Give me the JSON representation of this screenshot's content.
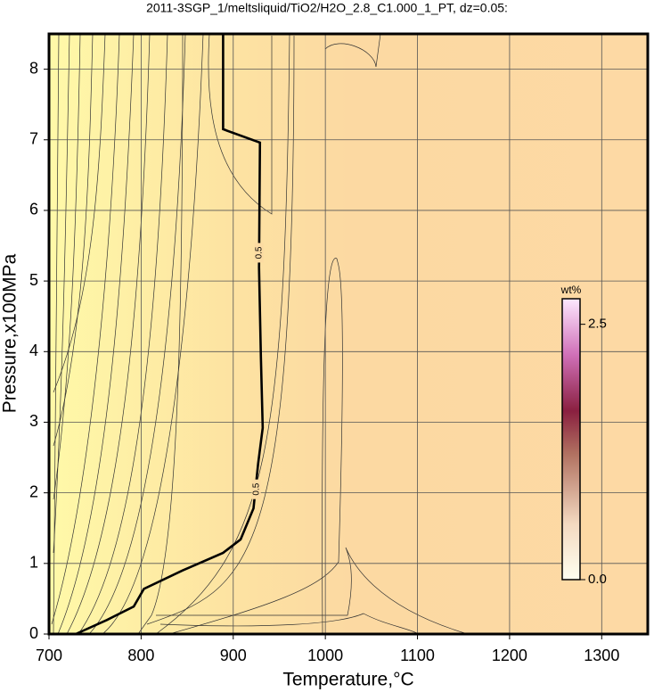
{
  "chart_data": {
    "type": "contour",
    "title": "2011-3SGP_1/meltsliquid/TiO2/H2O_2.8_C1.000_1_PT, dz=0.05:",
    "x_label": "Temperature,°C",
    "y_label": "Pressure,x100MPa",
    "xlim": [
      700,
      1350
    ],
    "ylim": [
      0,
      8.5
    ],
    "xticks": [
      700,
      800,
      900,
      1000,
      1100,
      1200,
      1300
    ],
    "yticks": [
      0,
      1,
      2,
      3,
      4,
      5,
      6,
      7,
      8
    ],
    "grid": true,
    "contour": {
      "label": "0.5",
      "x": [
        729,
        763,
        792,
        803,
        845,
        889,
        908,
        922,
        927,
        932,
        930,
        928,
        929,
        889,
        889
      ],
      "y": [
        0,
        0.2,
        0.39,
        0.64,
        0.9,
        1.15,
        1.34,
        1.78,
        2.41,
        2.92,
        3.93,
        5.19,
        6.96,
        7.15,
        8.5
      ],
      "label_points": [
        {
          "x": 928,
          "y": 5.4
        },
        {
          "x": 925,
          "y": 2.05
        }
      ]
    },
    "colorbar": {
      "label": "wt%",
      "lim": [
        0,
        2.75
      ],
      "ticks": [
        {
          "value": 0,
          "label": "0.0"
        },
        2.5
      ]
    }
  }
}
